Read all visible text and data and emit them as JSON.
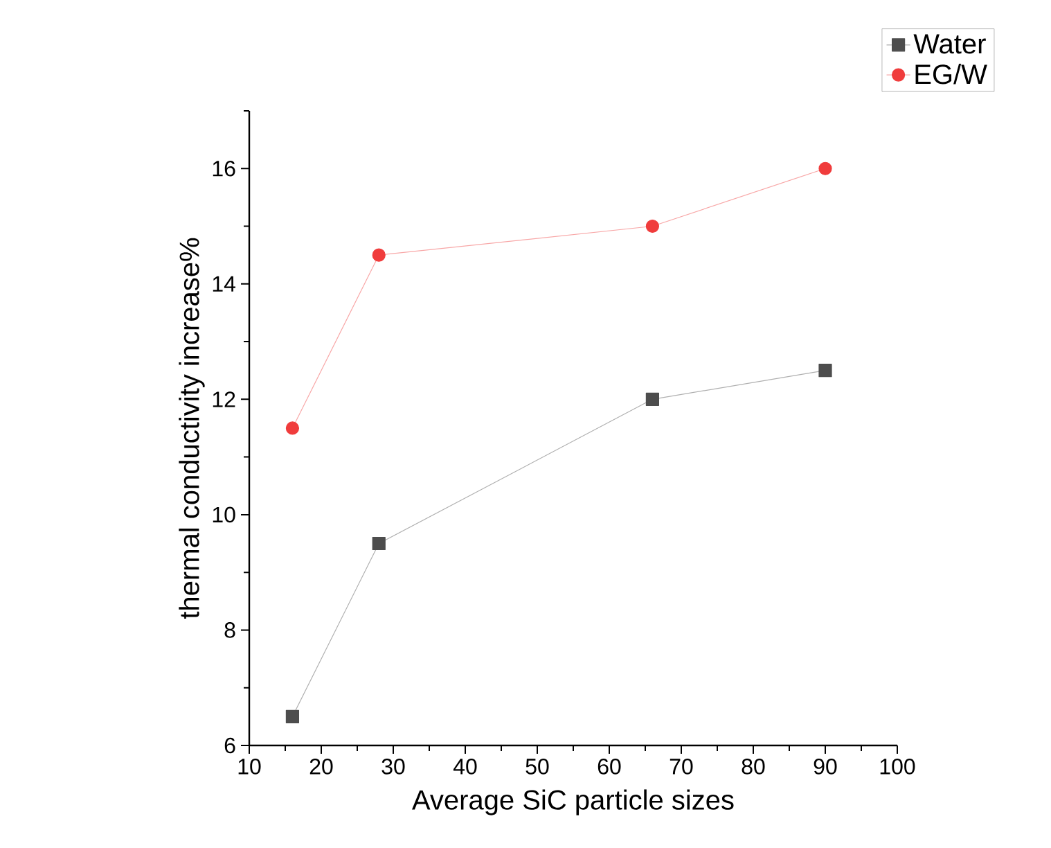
{
  "chart_data": {
    "type": "line",
    "xlabel": "Average SiC particle sizes",
    "ylabel": "thermal conductivity increase%",
    "x": [
      16,
      28,
      66,
      90
    ],
    "series": [
      {
        "name": "Water",
        "color": "#4d4d4d",
        "marker": "square",
        "values": [
          6.5,
          9.5,
          12.0,
          12.5
        ]
      },
      {
        "name": "EG/W",
        "color": "#f03c3c",
        "marker": "circle",
        "values": [
          11.5,
          14.5,
          15.0,
          16.0
        ]
      }
    ],
    "xlim": [
      10,
      100
    ],
    "ylim": [
      6,
      17
    ],
    "xticks": [
      10,
      {
        "value": 15,
        "label": null
      },
      20,
      {
        "value": 25,
        "label": null
      },
      30,
      {
        "value": 35,
        "label": null
      },
      40,
      {
        "value": 45,
        "label": null
      },
      50,
      {
        "value": 55,
        "label": null
      },
      60,
      {
        "value": 65,
        "label": null
      },
      70,
      {
        "value": 75,
        "label": null
      },
      80,
      {
        "value": 85,
        "label": null
      },
      90,
      {
        "value": 95,
        "label": null
      },
      100
    ],
    "yticks": [
      6,
      {
        "value": 7,
        "label": null
      },
      8,
      {
        "value": 9,
        "label": null
      },
      10,
      {
        "value": 11,
        "label": null
      },
      12,
      {
        "value": 13,
        "label": null
      },
      14,
      {
        "value": 15,
        "label": null
      },
      16,
      {
        "value": 17,
        "label": null
      }
    ],
    "grid": false,
    "legend": "top right",
    "line_style": "solid"
  }
}
